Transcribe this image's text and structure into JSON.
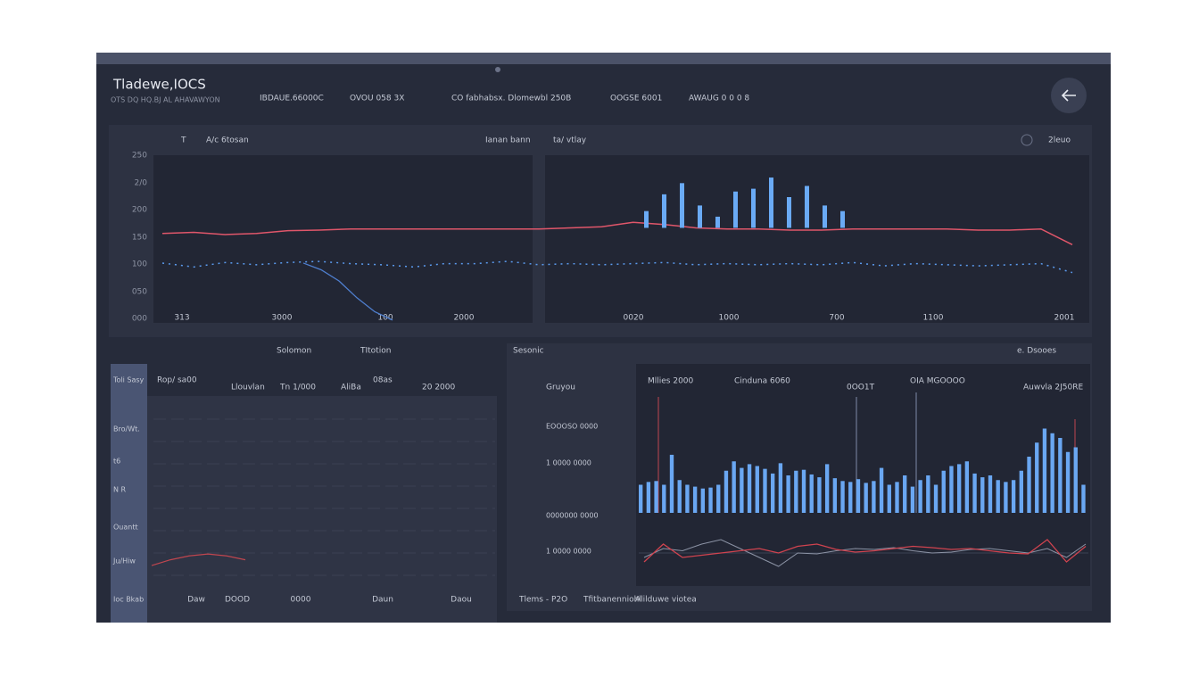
{
  "header": {
    "title": "Tladewe,IOCS",
    "subtitle": "OTS DQ HQ.BJ AL AHAVAWYON",
    "items": [
      "IBDAUE.66000C",
      "OVOU 058 3X",
      "CO fabhabsx. Dlomewbl 250B",
      "OOGSE 6001",
      "AWAUG 0 0 0 8"
    ]
  },
  "top_panel": {
    "toolbar": [
      "T",
      "A/c 6tosan",
      "Ianan bann",
      "ta/ vtlay",
      "2leuo"
    ],
    "y_labels": [
      "250",
      "2/0",
      "200",
      "150",
      "100",
      "050",
      "000"
    ],
    "x_labels": [
      "313",
      "3000",
      "100",
      "2000",
      "0020",
      "1000",
      "700",
      "1100",
      "2001"
    ],
    "red": [
      160,
      162,
      158,
      160,
      165,
      166,
      168,
      168,
      168,
      168,
      168,
      168,
      168,
      170,
      172,
      180,
      176,
      170,
      168,
      168,
      166,
      166,
      168,
      168,
      168,
      168,
      166,
      166,
      168,
      140
    ],
    "blue": [
      107,
      100,
      108,
      104,
      108,
      110,
      106,
      104,
      100,
      106,
      106,
      110,
      104,
      106,
      104,
      106,
      108,
      104,
      106,
      104,
      106,
      104,
      108,
      102,
      106,
      104,
      102,
      104,
      106,
      90
    ],
    "drop": [
      107,
      95,
      75,
      45,
      20,
      5
    ],
    "spikes": [
      200,
      230,
      250,
      210,
      190,
      235,
      240,
      260,
      225,
      245,
      210,
      200
    ]
  },
  "mid_toolbar": [
    "Solomon",
    "TItotion",
    "Sesonic",
    "e. Dsooes"
  ],
  "bottom_left": {
    "side_labels": [
      "Toli Sasy",
      "Bro/Wt.",
      "t6",
      "N R",
      "Ouantt",
      "Ju/Hiw",
      "Ioc Bkab"
    ],
    "header": [
      "Rop/ sa00",
      "Llouvlan",
      "Tn 1/000",
      "AliBa",
      "08as",
      "20 2000"
    ],
    "x_labels": [
      "Daw",
      "DOOD",
      "0000",
      "Daun",
      "Daou"
    ],
    "curve": [
      12,
      15,
      17,
      18,
      17,
      15
    ]
  },
  "bottom_right": {
    "title": "Gruyou",
    "side_labels": [
      "EOOOSO 0000",
      "1 0000 0000",
      "0000000 0000",
      "1 0000 0000"
    ],
    "header": [
      "Mllies 2000",
      "Cinduna 6060",
      "0OO1T",
      "OIA MGOOOO",
      "Auwvla 2J50RE"
    ],
    "bars": [
      30,
      33,
      34,
      30,
      62,
      35,
      30,
      28,
      26,
      27,
      30,
      45,
      55,
      48,
      52,
      50,
      47,
      42,
      53,
      40,
      45,
      46,
      41,
      38,
      52,
      37,
      34,
      33,
      36,
      32,
      34,
      48,
      30,
      33,
      40,
      28,
      35,
      40,
      30,
      45,
      50,
      52,
      55,
      42,
      38,
      40,
      35,
      33,
      35,
      45,
      60,
      75,
      90,
      85,
      80,
      65,
      70,
      30
    ],
    "line": [
      30,
      70,
      40,
      45,
      50,
      55,
      60,
      50,
      65,
      70,
      58,
      52,
      55,
      60,
      65,
      62,
      58,
      60,
      55,
      50,
      48,
      80,
      30,
      65
    ],
    "line2": [
      40,
      60,
      55,
      70,
      80,
      60,
      40,
      20,
      50,
      48,
      55,
      60,
      58,
      62,
      55,
      50,
      52,
      58,
      60,
      55,
      50,
      60,
      40,
      70
    ],
    "footer": [
      "Tlems - P2O",
      "Tfitbanenniohl",
      "Alilduwe viotea"
    ]
  }
}
